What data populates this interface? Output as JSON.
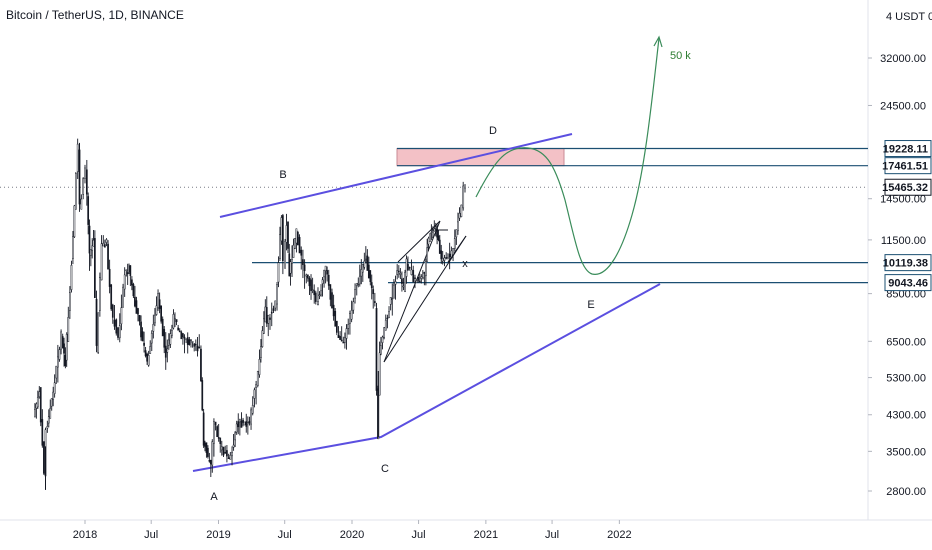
{
  "header": {
    "title": "Bitcoin / TetherUS, 1D, BINANCE"
  },
  "chart_data": {
    "type": "line",
    "title": "Bitcoin / TetherUS, 1D, BINANCE",
    "y_scale": "log",
    "currency_label": "USDT",
    "y_ticks": [
      "32000.00",
      "24500.00",
      "14500.00",
      "11500.00",
      "8500.00",
      "6500.00",
      "5300.00",
      "4300.00",
      "3500.00",
      "2800.00"
    ],
    "x_ticks": [
      "2018",
      "Jul",
      "2019",
      "Jul",
      "2020",
      "Jul",
      "2021",
      "Jul",
      "2022"
    ],
    "price_tags": [
      {
        "value": "19228.11",
        "style": "line"
      },
      {
        "value": "17461.51",
        "style": "line"
      },
      {
        "value": "15465.32",
        "style": "last"
      },
      {
        "value": "10119.38",
        "style": "line"
      },
      {
        "value": "9043.46",
        "style": "line"
      }
    ],
    "wave_labels": [
      "A",
      "B",
      "C",
      "D",
      "E",
      "x"
    ],
    "target_label": "50 k",
    "series": [
      {
        "values": [
          [
            "2017-08-17",
            4300
          ],
          [
            "2017-09-02",
            4900
          ],
          [
            "2017-09-15",
            3100
          ],
          [
            "2017-09-20",
            3900
          ],
          [
            "2017-10-10",
            4900
          ],
          [
            "2017-11-01",
            6700
          ],
          [
            "2017-11-12",
            5800
          ],
          [
            "2017-11-25",
            8700
          ],
          [
            "2017-12-07",
            14000
          ],
          [
            "2017-12-17",
            19500
          ],
          [
            "2017-12-22",
            13800
          ],
          [
            "2018-01-06",
            17100
          ],
          [
            "2018-01-17",
            10500
          ],
          [
            "2018-01-28",
            11500
          ],
          [
            "2018-02-06",
            6200
          ],
          [
            "2018-02-20",
            11300
          ],
          [
            "2018-03-05",
            11300
          ],
          [
            "2018-03-18",
            7800
          ],
          [
            "2018-04-06",
            6600
          ],
          [
            "2018-04-24",
            9500
          ],
          [
            "2018-05-05",
            9800
          ],
          [
            "2018-05-30",
            7400
          ],
          [
            "2018-06-24",
            5800
          ],
          [
            "2018-07-24",
            8400
          ],
          [
            "2018-08-14",
            6000
          ],
          [
            "2018-09-04",
            7400
          ],
          [
            "2018-09-30",
            6600
          ],
          [
            "2018-10-31",
            6300
          ],
          [
            "2018-11-14",
            6300
          ],
          [
            "2018-11-25",
            3700
          ],
          [
            "2018-12-15",
            3200
          ],
          [
            "2018-12-24",
            4100
          ],
          [
            "2019-01-10",
            3600
          ],
          [
            "2019-02-07",
            3350
          ],
          [
            "2019-02-24",
            4100
          ],
          [
            "2019-03-31",
            4100
          ],
          [
            "2019-04-23",
            5500
          ],
          [
            "2019-05-13",
            8000
          ],
          [
            "2019-05-17",
            7200
          ],
          [
            "2019-06-10",
            8000
          ],
          [
            "2019-06-26",
            13200
          ],
          [
            "2019-07-02",
            10000
          ],
          [
            "2019-07-10",
            12500
          ],
          [
            "2019-07-17",
            9500
          ],
          [
            "2019-08-06",
            12000
          ],
          [
            "2019-08-29",
            9500
          ],
          [
            "2019-09-24",
            8500
          ],
          [
            "2019-09-30",
            8000
          ],
          [
            "2019-10-25",
            9800
          ],
          [
            "2019-11-25",
            6800
          ],
          [
            "2019-12-17",
            6500
          ],
          [
            "2020-01-14",
            8700
          ],
          [
            "2020-02-12",
            10400
          ],
          [
            "2020-02-28",
            8600
          ],
          [
            "2020-03-08",
            8000
          ],
          [
            "2020-03-12",
            4900
          ],
          [
            "2020-03-13",
            3800
          ],
          [
            "2020-03-20",
            6200
          ],
          [
            "2020-04-29",
            8800
          ],
          [
            "2020-05-08",
            9900
          ],
          [
            "2020-05-25",
            8800
          ],
          [
            "2020-06-02",
            10100
          ],
          [
            "2020-06-26",
            9100
          ],
          [
            "2020-07-21",
            9400
          ],
          [
            "2020-07-28",
            11200
          ],
          [
            "2020-08-17",
            12400
          ],
          [
            "2020-08-28",
            11500
          ],
          [
            "2020-09-05",
            10100
          ],
          [
            "2020-09-24",
            10600
          ],
          [
            "2020-10-08",
            10900
          ],
          [
            "2020-10-21",
            12800
          ],
          [
            "2020-10-31",
            13900
          ],
          [
            "2020-11-05",
            15600
          ],
          [
            "2020-11-06",
            15465
          ]
        ]
      }
    ]
  },
  "colors": {
    "candles": "#131722",
    "trendline": "#5b4fe0",
    "hline": "#1b4f72",
    "zone_fill": "#f3c1c6",
    "projection": "#3a8c5a",
    "axis_text": "#131722"
  }
}
